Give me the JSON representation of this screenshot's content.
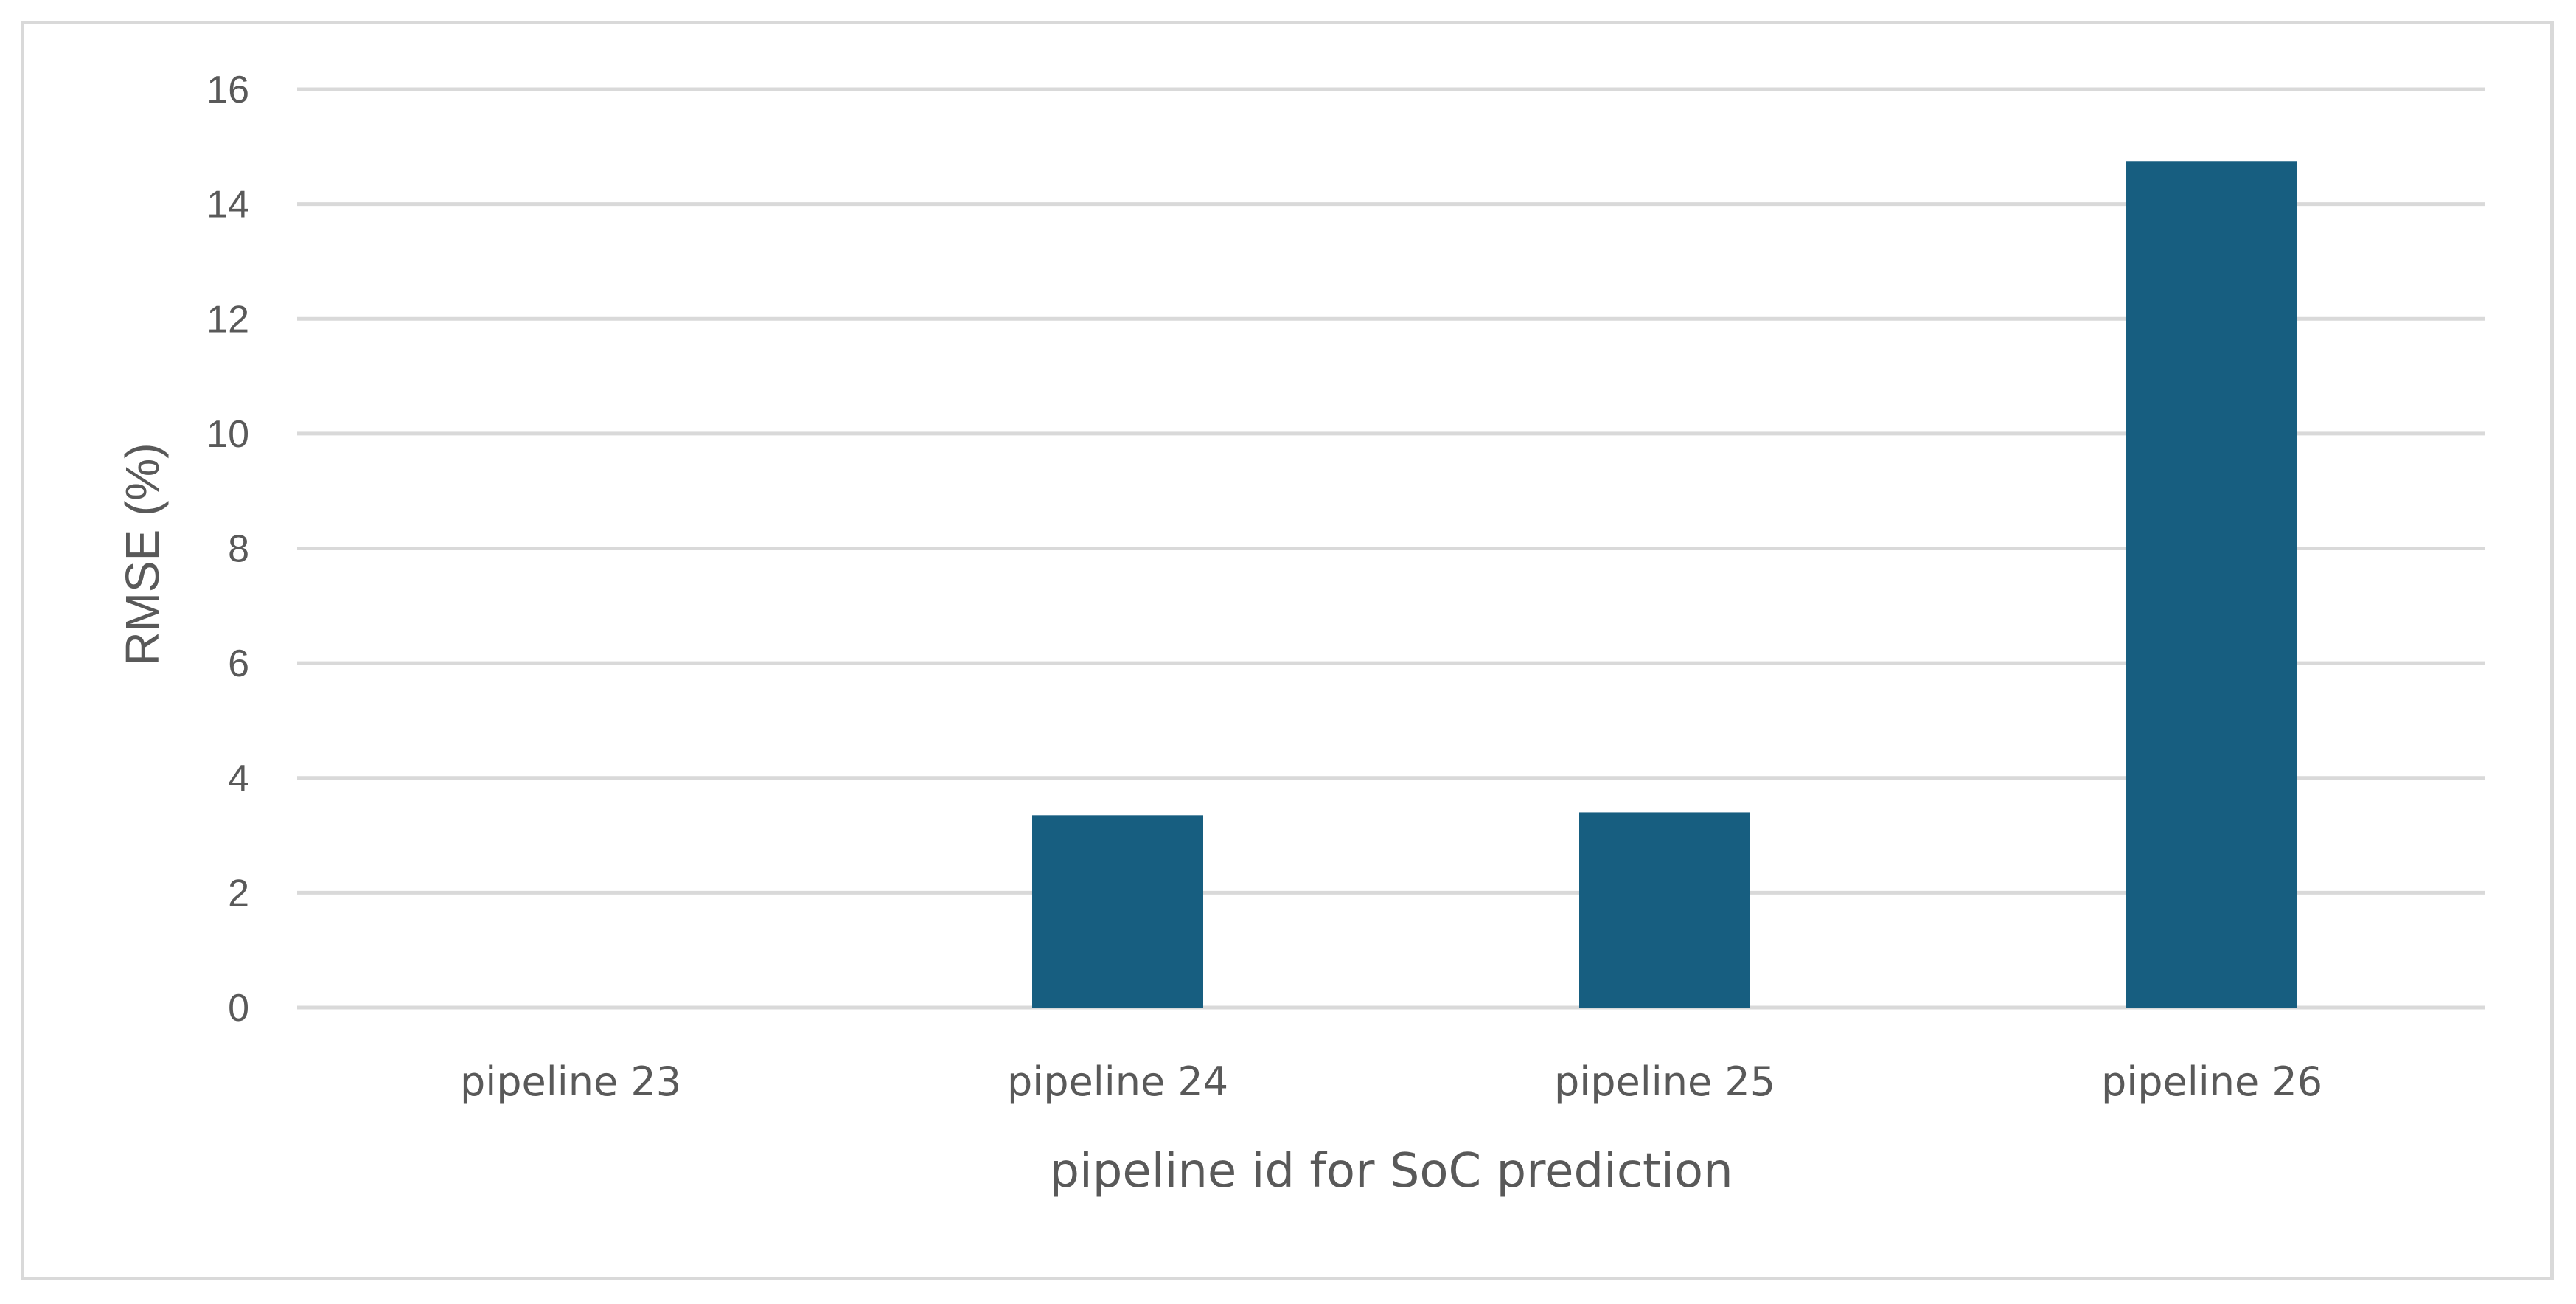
{
  "chart_data": {
    "type": "bar",
    "title": "",
    "xlabel": "pipeline id for SoC prediction",
    "ylabel": "RMSE (%)",
    "categories": [
      "pipeline 23",
      "pipeline 24",
      "pipeline 25",
      "pipeline 26"
    ],
    "values": [
      0,
      3.35,
      3.4,
      14.75
    ],
    "ylim": [
      0,
      16
    ],
    "yticks": [
      0,
      2,
      4,
      6,
      8,
      10,
      12,
      14,
      16
    ],
    "grid": true,
    "legend": "none",
    "bar_color": "#175e80",
    "grid_color": "#d9d9d9",
    "axis_color": "#d9d9d9",
    "text_color": "#595959"
  }
}
